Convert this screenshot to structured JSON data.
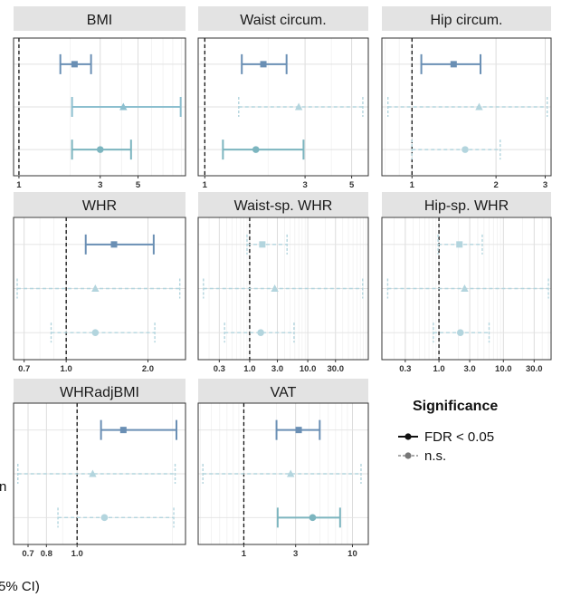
{
  "chart_data": {
    "type": "forest",
    "x_axis_caption": "5% CI)",
    "left_text_fragment": "n",
    "colors": {
      "row1": "#6a8fb4",
      "row2": "#8cbfcf",
      "row3": "#7cb5bf",
      "ns": "#b3d5de"
    },
    "legend": {
      "title": "Significance",
      "items": [
        {
          "label": "FDR < 0.05",
          "style": "solid"
        },
        {
          "label": "n.s.",
          "style": "dashed"
        }
      ]
    },
    "panels": [
      {
        "title": "BMI",
        "scale": "log",
        "xlim": [
          0.93,
          9.5
        ],
        "ticks": [
          1,
          3,
          5
        ],
        "rows": [
          {
            "est": 2.12,
            "lo": 1.75,
            "hi": 2.65,
            "sig": true,
            "shape": "square"
          },
          {
            "est": 4.1,
            "lo": 2.05,
            "hi": 8.9,
            "sig": true,
            "shape": "triangle"
          },
          {
            "est": 3.0,
            "lo": 2.05,
            "hi": 4.55,
            "sig": true,
            "shape": "circle"
          }
        ]
      },
      {
        "title": "Waist circum.",
        "scale": "log",
        "xlim": [
          0.93,
          6.0
        ],
        "ticks": [
          1,
          3,
          5
        ],
        "rows": [
          {
            "est": 1.9,
            "lo": 1.5,
            "hi": 2.45,
            "sig": true,
            "shape": "square"
          },
          {
            "est": 2.8,
            "lo": 1.45,
            "hi": 5.65,
            "sig": false,
            "shape": "triangle"
          },
          {
            "est": 1.75,
            "lo": 1.22,
            "hi": 2.95,
            "sig": true,
            "shape": "circle"
          }
        ]
      },
      {
        "title": "Hip circum.",
        "scale": "log",
        "xlim": [
          0.78,
          3.15
        ],
        "ticks": [
          1,
          2,
          3
        ],
        "rows": [
          {
            "est": 1.41,
            "lo": 1.08,
            "hi": 1.76,
            "sig": true,
            "shape": "square"
          },
          {
            "est": 1.74,
            "lo": 0.82,
            "hi": 3.05,
            "sig": false,
            "shape": "triangle"
          },
          {
            "est": 1.55,
            "lo": 1.0,
            "hi": 2.07,
            "sig": false,
            "shape": "circle"
          }
        ]
      },
      {
        "title": "WHR",
        "scale": "log",
        "xlim": [
          0.64,
          2.75
        ],
        "ticks": [
          0.7,
          1.0,
          2.0
        ],
        "tick_labels": [
          "0.7",
          "1.0",
          "2.0"
        ],
        "rows": [
          {
            "est": 1.5,
            "lo": 1.18,
            "hi": 2.1,
            "sig": true,
            "shape": "square"
          },
          {
            "est": 1.28,
            "lo": 0.66,
            "hi": 2.62,
            "sig": false,
            "shape": "triangle"
          },
          {
            "est": 1.28,
            "lo": 0.88,
            "hi": 2.12,
            "sig": false,
            "shape": "circle"
          }
        ]
      },
      {
        "title": "Waist-sp. WHR",
        "scale": "log",
        "xlim": [
          0.13,
          110
        ],
        "ticks": [
          0.3,
          1.0,
          3.0,
          10.0,
          30.0
        ],
        "tick_labels": [
          "0.3",
          "1.0",
          "3.0",
          "10.0",
          "30.0"
        ],
        "rows": [
          {
            "est": 1.65,
            "lo": 0.9,
            "hi": 4.4,
            "sig": false,
            "shape": "square"
          },
          {
            "est": 2.7,
            "lo": 0.16,
            "hi": 88,
            "sig": false,
            "shape": "triangle"
          },
          {
            "est": 1.55,
            "lo": 0.37,
            "hi": 5.8,
            "sig": false,
            "shape": "circle"
          }
        ]
      },
      {
        "title": "Hip-sp. WHR",
        "scale": "log",
        "xlim": [
          0.13,
          55
        ],
        "ticks": [
          0.3,
          1.0,
          3.0,
          10.0,
          30.0
        ],
        "tick_labels": [
          "0.3",
          "1.0",
          "3.0",
          "10.0",
          "30.0"
        ],
        "rows": [
          {
            "est": 2.08,
            "lo": 0.97,
            "hi": 4.7,
            "sig": false,
            "shape": "square"
          },
          {
            "est": 2.5,
            "lo": 0.16,
            "hi": 50,
            "sig": false,
            "shape": "triangle"
          },
          {
            "est": 2.15,
            "lo": 0.82,
            "hi": 6.0,
            "sig": false,
            "shape": "circle"
          }
        ]
      },
      {
        "title": "WHRadjBMI",
        "scale": "log",
        "xlim": [
          0.63,
          2.2
        ],
        "ticks": [
          0.7,
          0.8,
          1.0
        ],
        "tick_labels": [
          "0.7",
          "0.8",
          "1.0"
        ],
        "rows": [
          {
            "est": 1.4,
            "lo": 1.19,
            "hi": 2.06,
            "sig": true,
            "shape": "square"
          },
          {
            "est": 1.12,
            "lo": 0.65,
            "hi": 2.04,
            "sig": false,
            "shape": "triangle"
          },
          {
            "est": 1.22,
            "lo": 0.87,
            "hi": 2.02,
            "sig": false,
            "shape": "circle"
          }
        ]
      },
      {
        "title": "VAT",
        "scale": "log",
        "xlim": [
          0.38,
          14
        ],
        "ticks": [
          1,
          3,
          10
        ],
        "rows": [
          {
            "est": 3.2,
            "lo": 2.0,
            "hi": 5.0,
            "sig": true,
            "shape": "square"
          },
          {
            "est": 2.7,
            "lo": 0.42,
            "hi": 12.0,
            "sig": false,
            "shape": "triangle"
          },
          {
            "est": 4.3,
            "lo": 2.05,
            "hi": 7.7,
            "sig": true,
            "shape": "circle"
          }
        ]
      }
    ]
  }
}
